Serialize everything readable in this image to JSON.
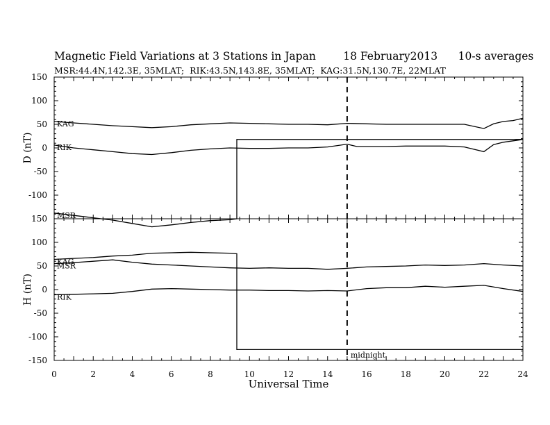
{
  "chart_data": {
    "type": "line",
    "title": "Magnetic Field Variations at 3 Stations in Japan        18 February2013      10-s averages",
    "subtitle": "MSR:44.4N,142.3E, 35MLAT;  RIK:43.5N,143.8E, 35MLAT;  KAG:31.5N,130.7E, 22MLAT",
    "xlabel": "Universal Time",
    "xlim": [
      0,
      24
    ],
    "xticks": [
      "0",
      "2",
      "4",
      "6",
      "8",
      "10",
      "12",
      "14",
      "16",
      "18",
      "20",
      "22",
      "24"
    ],
    "annotation": {
      "text": "midnight",
      "x": 15
    },
    "panels": [
      {
        "ylabel": "D (nT)",
        "ylim": [
          -150,
          150
        ],
        "yticks": [
          "-150",
          "-100",
          "-50",
          "0",
          "50",
          "100",
          "150"
        ],
        "series": [
          {
            "name": "KAG",
            "x": [
              0,
              1,
              2,
              3,
              4,
              5,
              6,
              7,
              8,
              9,
              10,
              11,
              12,
              13,
              14,
              15,
              16,
              17,
              18,
              19,
              20,
              21,
              22,
              22.5,
              23,
              23.5,
              24
            ],
            "y": [
              56,
              53,
              50,
              47,
              45,
              43,
              45,
              49,
              51,
              53,
              52,
              51,
              50,
              50,
              49,
              52,
              51,
              50,
              50,
              50,
              50,
              50,
              41,
              51,
              56,
              58,
              63
            ]
          },
          {
            "name": "RIK",
            "x": [
              0,
              1,
              2,
              3,
              4,
              5,
              6,
              7,
              8,
              9,
              10,
              11,
              12,
              13,
              14,
              15,
              15.5,
              16,
              17,
              18,
              19,
              20,
              21,
              22,
              22.5,
              23,
              23.5,
              24
            ],
            "y": [
              6,
              0,
              -4,
              -8,
              -12,
              -14,
              -10,
              -5,
              -2,
              0,
              -1,
              -1,
              0,
              0,
              2,
              8,
              3,
              3,
              3,
              4,
              4,
              4,
              2,
              -8,
              7,
              12,
              15,
              18
            ]
          },
          {
            "name": "MSR",
            "x": [
              0,
              1,
              2,
              3,
              4,
              5,
              6,
              7,
              8,
              9,
              9.35,
              9.35,
              24
            ],
            "y": [
              -138,
              -143,
              -148,
              -153,
              -160,
              -167,
              -163,
              -158,
              -154,
              -152,
              -150,
              18,
              18
            ]
          }
        ]
      },
      {
        "ylabel": "H (nT)",
        "ylim": [
          -150,
          150
        ],
        "yticks": [
          "-150",
          "-100",
          "-50",
          "0",
          "50",
          "100",
          "150"
        ],
        "series": [
          {
            "name": "KAG",
            "x": [
              0,
              1,
              2,
              3,
              4,
              5,
              6,
              7,
              8,
              9,
              9.35,
              9.35,
              24
            ],
            "y": [
              64,
              66,
              68,
              71,
              73,
              77,
              78,
              79,
              78,
              77,
              76,
              -127,
              -127
            ]
          },
          {
            "name": "MSR",
            "x": [
              0,
              1,
              2,
              3,
              4,
              5,
              6,
              7,
              8,
              9,
              10,
              11,
              12,
              13,
              14,
              15,
              16,
              17,
              18,
              19,
              20,
              21,
              22,
              23,
              24
            ],
            "y": [
              55,
              57,
              60,
              63,
              58,
              54,
              52,
              50,
              48,
              46,
              45,
              46,
              45,
              45,
              43,
              45,
              48,
              49,
              50,
              52,
              51,
              52,
              55,
              52,
              50
            ]
          },
          {
            "name": "RIK",
            "x": [
              0,
              1,
              2,
              3,
              4,
              5,
              6,
              7,
              8,
              9,
              10,
              11,
              12,
              13,
              14,
              15,
              16,
              17,
              18,
              19,
              20,
              21,
              22,
              23,
              24
            ],
            "y": [
              -11,
              -10,
              -9,
              -8,
              -4,
              1,
              2,
              1,
              0,
              -1,
              -1,
              -2,
              -2,
              -3,
              -2,
              -3,
              2,
              4,
              4,
              7,
              5,
              7,
              9,
              2,
              -4
            ]
          }
        ]
      }
    ]
  }
}
